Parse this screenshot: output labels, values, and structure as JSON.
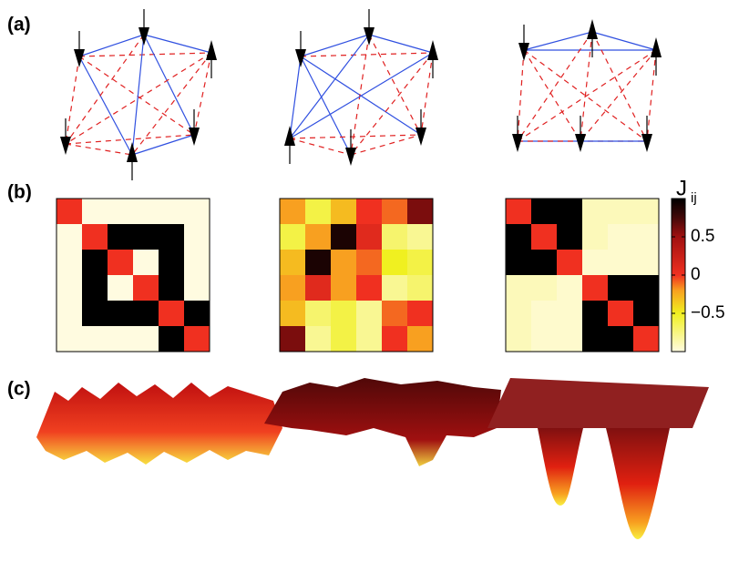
{
  "panels": {
    "a": {
      "label": "(a)"
    },
    "b": {
      "label": "(b)"
    },
    "c": {
      "label": "(c)"
    }
  },
  "heatmaps": [
    {
      "values": [
        [
          0,
          -1,
          -1,
          -1,
          -1,
          -1
        ],
        [
          -1,
          0,
          1,
          1,
          1,
          -1
        ],
        [
          -1,
          1,
          0,
          -1,
          1,
          -1
        ],
        [
          -1,
          1,
          -1,
          0,
          1,
          -1
        ],
        [
          -1,
          1,
          1,
          1,
          0,
          1
        ],
        [
          -1,
          -1,
          -1,
          -1,
          1,
          0
        ]
      ]
    },
    {
      "values": [
        [
          -0.2,
          -0.6,
          -0.3,
          0,
          -0.1,
          0.6
        ],
        [
          -0.6,
          -0.2,
          0.9,
          0.1,
          -0.7,
          -0.8
        ],
        [
          -0.3,
          0.9,
          -0.2,
          -0.1,
          -0.5,
          -0.6
        ],
        [
          -0.2,
          0.1,
          -0.2,
          0,
          -0.8,
          -0.7
        ],
        [
          -0.3,
          -0.7,
          -0.6,
          -0.8,
          -0.1,
          0
        ],
        [
          0.6,
          -0.8,
          -0.6,
          -0.8,
          0,
          -0.2
        ]
      ]
    },
    {
      "values": [
        [
          0,
          1,
          1,
          -0.9,
          -0.9,
          -0.9
        ],
        [
          1,
          0,
          1,
          -0.9,
          -0.95,
          -0.95
        ],
        [
          1,
          1,
          0,
          -0.95,
          -0.95,
          -0.95
        ],
        [
          -0.9,
          -0.9,
          -0.95,
          0,
          1,
          1
        ],
        [
          -0.9,
          -0.95,
          -0.95,
          1,
          0,
          1
        ],
        [
          -0.9,
          -0.95,
          -0.95,
          1,
          1,
          0
        ]
      ]
    }
  ],
  "colorbar": {
    "title": "J",
    "subscript": "ij",
    "clim": [
      -1,
      1
    ],
    "ticks": [
      0.5,
      0,
      {
        "value": -0.5,
        "label": "−0.5"
      }
    ]
  }
}
